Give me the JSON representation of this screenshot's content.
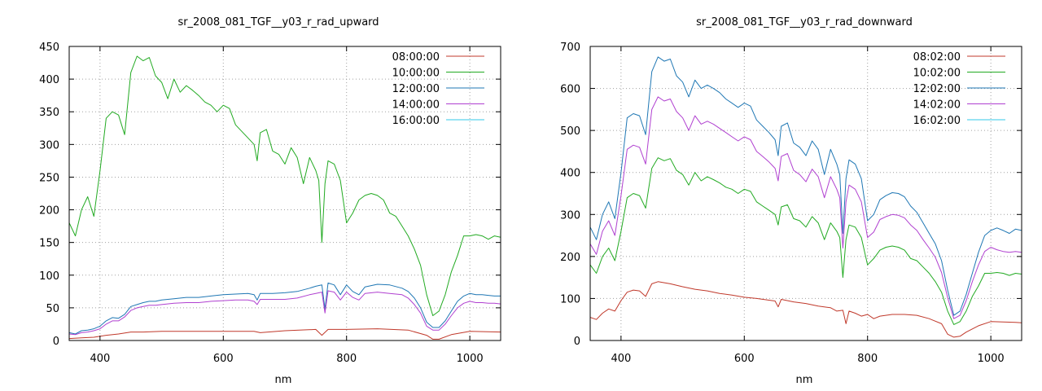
{
  "chart_data": [
    {
      "type": "line",
      "title": "sr_2008_081_TGF__y03_r_rad_upward",
      "xlabel": "nm",
      "ylabel": "",
      "xlim": [
        350,
        1050
      ],
      "ylim": [
        0,
        450
      ],
      "xticks": [
        400,
        600,
        800,
        1000
      ],
      "yticks": [
        0,
        50,
        100,
        150,
        200,
        250,
        300,
        350,
        400,
        450
      ],
      "grid": true,
      "legend_position": "top-right",
      "series": [
        {
          "name": "08:00:00",
          "color": "#c0392b",
          "x": [
            350,
            370,
            390,
            410,
            430,
            450,
            470,
            500,
            550,
            600,
            650,
            660,
            700,
            750,
            760,
            770,
            800,
            850,
            900,
            930,
            940,
            950,
            970,
            1000,
            1050
          ],
          "y": [
            3,
            4,
            5,
            8,
            10,
            13,
            13,
            14,
            14,
            14,
            14,
            12,
            15,
            17,
            8,
            17,
            17,
            18,
            16,
            8,
            2,
            2,
            9,
            14,
            13
          ]
        },
        {
          "name": "10:00:00",
          "color": "#22aa22",
          "x": [
            350,
            360,
            370,
            380,
            390,
            400,
            410,
            420,
            430,
            440,
            450,
            460,
            470,
            480,
            490,
            500,
            510,
            520,
            530,
            540,
            550,
            560,
            570,
            580,
            590,
            600,
            610,
            620,
            630,
            640,
            650,
            655,
            660,
            670,
            680,
            690,
            700,
            710,
            720,
            730,
            740,
            750,
            755,
            760,
            765,
            770,
            780,
            790,
            800,
            810,
            820,
            830,
            840,
            850,
            860,
            870,
            880,
            890,
            900,
            910,
            920,
            930,
            940,
            950,
            960,
            970,
            980,
            990,
            1000,
            1010,
            1020,
            1030,
            1040,
            1050
          ],
          "y": [
            180,
            160,
            200,
            220,
            190,
            260,
            340,
            350,
            345,
            315,
            410,
            435,
            428,
            433,
            405,
            395,
            370,
            400,
            380,
            390,
            383,
            375,
            365,
            360,
            350,
            360,
            355,
            330,
            320,
            310,
            300,
            275,
            318,
            323,
            290,
            285,
            270,
            295,
            280,
            240,
            280,
            260,
            245,
            150,
            240,
            275,
            270,
            245,
            180,
            195,
            215,
            222,
            225,
            222,
            215,
            195,
            190,
            175,
            160,
            140,
            115,
            70,
            38,
            45,
            70,
            105,
            130,
            160,
            160,
            162,
            160,
            155,
            160,
            158
          ]
        },
        {
          "name": "12:00:00",
          "color": "#1f77b4",
          "x": [
            350,
            360,
            370,
            380,
            390,
            400,
            410,
            420,
            430,
            440,
            450,
            460,
            470,
            480,
            490,
            500,
            520,
            540,
            560,
            580,
            600,
            620,
            640,
            650,
            655,
            660,
            680,
            700,
            720,
            740,
            750,
            760,
            765,
            770,
            780,
            790,
            800,
            810,
            820,
            830,
            850,
            870,
            890,
            900,
            910,
            920,
            930,
            940,
            950,
            960,
            970,
            980,
            990,
            1000,
            1010,
            1020,
            1030,
            1040,
            1050
          ],
          "y": [
            12,
            10,
            15,
            16,
            18,
            22,
            30,
            35,
            34,
            40,
            52,
            55,
            58,
            60,
            60,
            62,
            64,
            66,
            66,
            68,
            70,
            71,
            72,
            70,
            62,
            72,
            72,
            73,
            75,
            80,
            83,
            85,
            48,
            88,
            85,
            70,
            85,
            75,
            70,
            82,
            86,
            85,
            80,
            75,
            65,
            50,
            28,
            20,
            20,
            30,
            45,
            60,
            68,
            72,
            70,
            70,
            69,
            68,
            68
          ]
        },
        {
          "name": "14:00:00",
          "color": "#b040d0",
          "x": [
            350,
            360,
            370,
            380,
            390,
            400,
            410,
            420,
            430,
            440,
            450,
            460,
            470,
            480,
            490,
            500,
            520,
            540,
            560,
            580,
            600,
            620,
            640,
            650,
            655,
            660,
            680,
            700,
            720,
            740,
            750,
            760,
            765,
            770,
            780,
            790,
            800,
            810,
            820,
            830,
            850,
            870,
            890,
            900,
            910,
            920,
            930,
            940,
            950,
            960,
            970,
            980,
            990,
            1000,
            1010,
            1020,
            1030,
            1040,
            1050
          ],
          "y": [
            10,
            9,
            12,
            13,
            15,
            18,
            25,
            30,
            30,
            36,
            46,
            50,
            52,
            54,
            54,
            55,
            57,
            58,
            58,
            60,
            61,
            62,
            62,
            60,
            55,
            63,
            63,
            63,
            65,
            70,
            72,
            74,
            42,
            76,
            74,
            62,
            74,
            66,
            62,
            72,
            74,
            72,
            70,
            65,
            55,
            42,
            22,
            16,
            16,
            25,
            38,
            50,
            57,
            60,
            58,
            58,
            57,
            57,
            56
          ]
        },
        {
          "name": "16:00:00",
          "color": "#33c8e8",
          "x": [
            350,
            1050
          ],
          "y": [
            0,
            0
          ]
        }
      ]
    },
    {
      "type": "line",
      "title": "sr_2008_081_TGF__y03_r_rad_downward",
      "xlabel": "nm",
      "ylabel": "",
      "xlim": [
        350,
        1050
      ],
      "ylim": [
        0,
        700
      ],
      "xticks": [
        400,
        600,
        800,
        1000
      ],
      "yticks": [
        0,
        100,
        200,
        300,
        400,
        500,
        600,
        700
      ],
      "grid": true,
      "legend_position": "top-right",
      "series": [
        {
          "name": "08:02:00",
          "color": "#c0392b",
          "x": [
            350,
            360,
            370,
            380,
            390,
            400,
            410,
            420,
            430,
            440,
            450,
            460,
            480,
            500,
            520,
            540,
            560,
            580,
            600,
            620,
            640,
            650,
            655,
            660,
            680,
            700,
            720,
            740,
            750,
            760,
            765,
            770,
            780,
            790,
            800,
            810,
            820,
            840,
            860,
            880,
            900,
            920,
            930,
            940,
            950,
            960,
            980,
            1000,
            1020,
            1040,
            1050
          ],
          "y": [
            55,
            50,
            65,
            75,
            70,
            95,
            115,
            120,
            118,
            105,
            135,
            140,
            135,
            128,
            122,
            118,
            112,
            108,
            103,
            100,
            96,
            94,
            80,
            98,
            92,
            88,
            82,
            78,
            70,
            72,
            40,
            70,
            65,
            58,
            62,
            52,
            58,
            62,
            62,
            60,
            52,
            40,
            15,
            8,
            10,
            20,
            35,
            45,
            44,
            43,
            42
          ]
        },
        {
          "name": "10:02:00",
          "color": "#22aa22",
          "x": [
            350,
            360,
            370,
            380,
            390,
            400,
            410,
            420,
            430,
            440,
            450,
            460,
            470,
            480,
            490,
            500,
            510,
            520,
            530,
            540,
            550,
            560,
            570,
            580,
            590,
            600,
            610,
            620,
            630,
            640,
            650,
            655,
            660,
            670,
            680,
            690,
            700,
            710,
            720,
            730,
            740,
            750,
            755,
            760,
            765,
            770,
            780,
            790,
            800,
            810,
            820,
            830,
            840,
            850,
            860,
            870,
            880,
            890,
            900,
            910,
            920,
            930,
            940,
            950,
            960,
            970,
            980,
            990,
            1000,
            1010,
            1020,
            1030,
            1040,
            1050
          ],
          "y": [
            180,
            160,
            200,
            220,
            190,
            260,
            340,
            350,
            345,
            315,
            410,
            435,
            428,
            433,
            405,
            395,
            370,
            400,
            380,
            390,
            383,
            375,
            365,
            360,
            350,
            360,
            355,
            330,
            320,
            310,
            300,
            275,
            318,
            323,
            290,
            285,
            270,
            295,
            280,
            240,
            280,
            260,
            245,
            150,
            240,
            275,
            270,
            245,
            180,
            195,
            215,
            222,
            225,
            222,
            215,
            195,
            190,
            175,
            160,
            140,
            115,
            70,
            38,
            45,
            70,
            105,
            130,
            160,
            160,
            162,
            160,
            155,
            160,
            158
          ]
        },
        {
          "name": "12:02:00",
          "color": "#1f77b4",
          "x": [
            350,
            360,
            370,
            380,
            390,
            400,
            410,
            420,
            430,
            440,
            450,
            460,
            470,
            480,
            490,
            500,
            510,
            520,
            530,
            540,
            550,
            560,
            570,
            580,
            590,
            600,
            610,
            620,
            630,
            640,
            650,
            655,
            660,
            670,
            680,
            690,
            700,
            710,
            720,
            730,
            740,
            750,
            755,
            760,
            765,
            770,
            780,
            790,
            800,
            810,
            820,
            830,
            840,
            850,
            860,
            870,
            880,
            890,
            900,
            910,
            920,
            930,
            940,
            950,
            960,
            970,
            980,
            990,
            1000,
            1010,
            1020,
            1030,
            1040,
            1050
          ],
          "y": [
            270,
            240,
            300,
            330,
            290,
            400,
            530,
            540,
            535,
            490,
            640,
            675,
            665,
            670,
            630,
            615,
            580,
            620,
            600,
            608,
            600,
            590,
            575,
            565,
            555,
            565,
            558,
            525,
            510,
            495,
            478,
            440,
            510,
            518,
            470,
            460,
            440,
            475,
            455,
            395,
            455,
            420,
            395,
            255,
            385,
            430,
            420,
            385,
            285,
            300,
            335,
            345,
            352,
            350,
            342,
            320,
            305,
            280,
            255,
            230,
            190,
            120,
            60,
            70,
            110,
            160,
            210,
            250,
            262,
            268,
            262,
            255,
            265,
            262
          ]
        },
        {
          "name": "14:02:00",
          "color": "#b040d0",
          "x": [
            350,
            360,
            370,
            380,
            390,
            400,
            410,
            420,
            430,
            440,
            450,
            460,
            470,
            480,
            490,
            500,
            510,
            520,
            530,
            540,
            550,
            560,
            570,
            580,
            590,
            600,
            610,
            620,
            630,
            640,
            650,
            655,
            660,
            670,
            680,
            690,
            700,
            710,
            720,
            730,
            740,
            750,
            755,
            760,
            765,
            770,
            780,
            790,
            800,
            810,
            820,
            830,
            840,
            850,
            860,
            870,
            880,
            890,
            900,
            910,
            920,
            930,
            940,
            950,
            960,
            970,
            980,
            990,
            1000,
            1010,
            1020,
            1030,
            1040,
            1050
          ],
          "y": [
            230,
            205,
            260,
            285,
            250,
            345,
            455,
            465,
            460,
            420,
            550,
            580,
            570,
            575,
            545,
            530,
            500,
            535,
            515,
            522,
            515,
            505,
            495,
            485,
            475,
            485,
            478,
            450,
            438,
            425,
            410,
            380,
            438,
            445,
            405,
            395,
            378,
            408,
            390,
            340,
            390,
            360,
            340,
            220,
            330,
            370,
            360,
            330,
            245,
            258,
            288,
            295,
            300,
            298,
            292,
            275,
            262,
            240,
            220,
            198,
            162,
            102,
            52,
            60,
            95,
            140,
            180,
            212,
            222,
            216,
            212,
            210,
            212,
            210
          ]
        },
        {
          "name": "16:02:00",
          "color": "#33c8e8",
          "x": [
            350,
            1050
          ],
          "y": [
            0,
            0
          ]
        }
      ]
    }
  ]
}
